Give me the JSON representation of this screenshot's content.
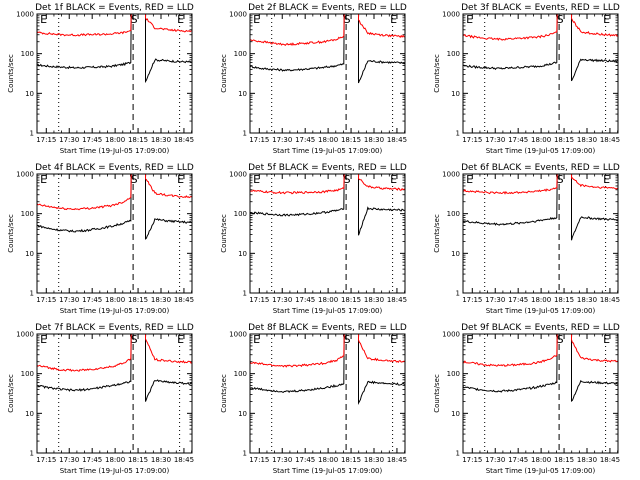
{
  "figure": {
    "colors": {
      "events": "#000000",
      "lld": "#ff0000",
      "axes": "#000000",
      "background": "#ffffff"
    }
  },
  "chart_data": [
    {
      "type": "line",
      "title": "Det 1f BLACK = Events, RED = LLD",
      "xlabel": "Start Time (19-Jul-05 17:09:00)",
      "ylabel": "Counts/sec",
      "xlim": [
        0,
        100
      ],
      "ylim": [
        1,
        1000
      ],
      "yscale": "log",
      "xticks": [
        "17:15",
        "17:30",
        "17:45",
        "18:00",
        "18:15",
        "18:30",
        "18:45"
      ],
      "yticks": [
        "1",
        "10",
        "100",
        "1000"
      ],
      "markers": [
        {
          "label": "E",
          "x": 2
        },
        {
          "label": "S",
          "x": 62
        },
        {
          "label": "E",
          "x": 92
        }
      ],
      "series": [
        {
          "name": "Events",
          "color": "#000000",
          "x": [
            0,
            8,
            16,
            24,
            32,
            40,
            48,
            56,
            60.5,
            61,
            69.5,
            70,
            76,
            84,
            92,
            100
          ],
          "values": [
            52,
            48,
            46,
            44,
            45,
            46,
            48,
            54,
            60,
            1000,
            1000,
            20,
            70,
            66,
            63,
            62
          ]
        },
        {
          "name": "LLD",
          "color": "#ff0000",
          "x": [
            0,
            8,
            16,
            24,
            32,
            40,
            48,
            56,
            60.5,
            61,
            69.5,
            70,
            76,
            84,
            92,
            100
          ],
          "values": [
            340,
            320,
            300,
            295,
            300,
            305,
            315,
            340,
            380,
            1000,
            1000,
            800,
            450,
            400,
            380,
            370
          ]
        }
      ]
    },
    {
      "type": "line",
      "title": "Det 2f BLACK = Events, RED = LLD",
      "xlabel": "Start Time (19-Jul-05 17:09:00)",
      "ylabel": "Counts/sec",
      "xlim": [
        0,
        100
      ],
      "ylim": [
        1,
        1000
      ],
      "yscale": "log",
      "xticks": [
        "17:15",
        "17:30",
        "17:45",
        "18:00",
        "18:15",
        "18:30",
        "18:45"
      ],
      "yticks": [
        "1",
        "10",
        "100",
        "1000"
      ],
      "markers": [
        {
          "label": "E",
          "x": 2
        },
        {
          "label": "S",
          "x": 62
        },
        {
          "label": "E",
          "x": 92
        }
      ],
      "series": [
        {
          "name": "Events",
          "color": "#000000",
          "x": [
            0,
            8,
            16,
            24,
            32,
            40,
            48,
            56,
            60.5,
            61,
            69.5,
            70,
            76,
            84,
            92,
            100
          ],
          "values": [
            48,
            42,
            40,
            38,
            40,
            42,
            45,
            50,
            55,
            1000,
            1000,
            18,
            66,
            62,
            60,
            58
          ]
        },
        {
          "name": "LLD",
          "color": "#ff0000",
          "x": [
            0,
            8,
            16,
            24,
            32,
            40,
            48,
            56,
            60.5,
            61,
            69.5,
            70,
            76,
            84,
            92,
            100
          ],
          "values": [
            220,
            200,
            180,
            170,
            180,
            190,
            200,
            230,
            280,
            1000,
            1000,
            700,
            330,
            300,
            280,
            270
          ]
        }
      ]
    },
    {
      "type": "line",
      "title": "Det 3f BLACK = Events, RED = LLD",
      "xlabel": "Start Time (19-Jul-05 17:09:00)",
      "ylabel": "Counts/sec",
      "xlim": [
        0,
        100
      ],
      "ylim": [
        1,
        1000
      ],
      "yscale": "log",
      "xticks": [
        "17:15",
        "17:30",
        "17:45",
        "18:00",
        "18:15",
        "18:30",
        "18:45"
      ],
      "yticks": [
        "1",
        "10",
        "100",
        "1000"
      ],
      "markers": [
        {
          "label": "E",
          "x": 2
        },
        {
          "label": "S",
          "x": 62
        },
        {
          "label": "E",
          "x": 92
        }
      ],
      "series": [
        {
          "name": "Events",
          "color": "#000000",
          "x": [
            0,
            8,
            16,
            24,
            32,
            40,
            48,
            56,
            60.5,
            61,
            69.5,
            70,
            76,
            84,
            92,
            100
          ],
          "values": [
            50,
            46,
            44,
            42,
            44,
            46,
            48,
            54,
            60,
            1000,
            1000,
            20,
            72,
            68,
            66,
            64
          ]
        },
        {
          "name": "LLD",
          "color": "#ff0000",
          "x": [
            0,
            8,
            16,
            24,
            32,
            40,
            48,
            56,
            60.5,
            61,
            69.5,
            70,
            76,
            84,
            92,
            100
          ],
          "values": [
            290,
            260,
            240,
            230,
            240,
            250,
            260,
            300,
            350,
            1000,
            1000,
            750,
            360,
            320,
            300,
            290
          ]
        }
      ]
    },
    {
      "type": "line",
      "title": "Det 4f BLACK = Events, RED = LLD",
      "xlabel": "Start Time (19-Jul-05 17:09:00)",
      "ylabel": "Counts/sec",
      "xlim": [
        0,
        100
      ],
      "ylim": [
        1,
        1000
      ],
      "yscale": "log",
      "xticks": [
        "17:15",
        "17:30",
        "17:45",
        "18:00",
        "18:15",
        "18:30",
        "18:45"
      ],
      "yticks": [
        "1",
        "10",
        "100",
        "1000"
      ],
      "markers": [
        {
          "label": "E",
          "x": 2
        },
        {
          "label": "S",
          "x": 62
        },
        {
          "label": "E",
          "x": 92
        }
      ],
      "series": [
        {
          "name": "Events",
          "color": "#000000",
          "x": [
            0,
            8,
            16,
            24,
            32,
            40,
            48,
            56,
            60.5,
            61,
            69.5,
            70,
            76,
            84,
            92,
            100
          ],
          "values": [
            50,
            42,
            38,
            36,
            38,
            42,
            48,
            58,
            66,
            1000,
            1000,
            22,
            72,
            66,
            62,
            60
          ]
        },
        {
          "name": "LLD",
          "color": "#ff0000",
          "x": [
            0,
            8,
            16,
            24,
            32,
            40,
            48,
            56,
            60.5,
            61,
            69.5,
            70,
            76,
            84,
            92,
            100
          ],
          "values": [
            170,
            150,
            135,
            130,
            135,
            145,
            160,
            200,
            260,
            1000,
            1000,
            800,
            330,
            290,
            270,
            260
          ]
        }
      ]
    },
    {
      "type": "line",
      "title": "Det 5f BLACK = Events, RED = LLD",
      "xlabel": "Start Time (19-Jul-05 17:09:00)",
      "ylabel": "Counts/sec",
      "xlim": [
        0,
        100
      ],
      "ylim": [
        1,
        1000
      ],
      "yscale": "log",
      "xticks": [
        "17:15",
        "17:30",
        "17:45",
        "18:00",
        "18:15",
        "18:30",
        "18:45"
      ],
      "yticks": [
        "1",
        "10",
        "100",
        "1000"
      ],
      "markers": [
        {
          "label": "E",
          "x": 2
        },
        {
          "label": "S",
          "x": 62
        },
        {
          "label": "E",
          "x": 92
        }
      ],
      "series": [
        {
          "name": "Events",
          "color": "#000000",
          "x": [
            0,
            8,
            16,
            24,
            32,
            40,
            48,
            56,
            60.5,
            61,
            69.5,
            70,
            76,
            84,
            92,
            100
          ],
          "values": [
            105,
            100,
            95,
            92,
            95,
            100,
            108,
            120,
            130,
            1000,
            1000,
            30,
            135,
            128,
            125,
            122
          ]
        },
        {
          "name": "LLD",
          "color": "#ff0000",
          "x": [
            0,
            8,
            16,
            24,
            32,
            40,
            48,
            56,
            60.5,
            61,
            69.5,
            70,
            76,
            84,
            92,
            100
          ],
          "values": [
            380,
            360,
            340,
            335,
            340,
            350,
            360,
            390,
            430,
            1000,
            1000,
            800,
            480,
            440,
            420,
            410
          ]
        }
      ]
    },
    {
      "type": "line",
      "title": "Det 6f BLACK = Events, RED = LLD",
      "xlabel": "Start Time (19-Jul-05 17:09:00)",
      "ylabel": "Counts/sec",
      "xlim": [
        0,
        100
      ],
      "ylim": [
        1,
        1000
      ],
      "yscale": "log",
      "xticks": [
        "17:15",
        "17:30",
        "17:45",
        "18:00",
        "18:15",
        "18:30",
        "18:45"
      ],
      "yticks": [
        "1",
        "10",
        "100",
        "1000"
      ],
      "markers": [
        {
          "label": "E",
          "x": 2
        },
        {
          "label": "S",
          "x": 62
        },
        {
          "label": "E",
          "x": 92
        }
      ],
      "series": [
        {
          "name": "Events",
          "color": "#000000",
          "x": [
            0,
            8,
            16,
            24,
            32,
            40,
            48,
            56,
            60.5,
            61,
            69.5,
            70,
            76,
            84,
            92,
            100
          ],
          "values": [
            65,
            60,
            56,
            54,
            56,
            60,
            66,
            74,
            80,
            1000,
            1000,
            22,
            82,
            76,
            72,
            70
          ]
        },
        {
          "name": "LLD",
          "color": "#ff0000",
          "x": [
            0,
            8,
            16,
            24,
            32,
            40,
            48,
            56,
            60.5,
            61,
            69.5,
            70,
            76,
            84,
            92,
            100
          ],
          "values": [
            380,
            360,
            340,
            335,
            340,
            350,
            365,
            400,
            450,
            1000,
            1000,
            800,
            520,
            470,
            450,
            440
          ]
        }
      ]
    },
    {
      "type": "line",
      "title": "Det 7f BLACK = Events, RED = LLD",
      "xlabel": "Start Time (19-Jul-05 17:09:00)",
      "ylabel": "Counts/sec",
      "xlim": [
        0,
        100
      ],
      "ylim": [
        1,
        1000
      ],
      "yscale": "log",
      "xticks": [
        "17:15",
        "17:30",
        "17:45",
        "18:00",
        "18:15",
        "18:30",
        "18:45"
      ],
      "yticks": [
        "1",
        "10",
        "100",
        "1000"
      ],
      "markers": [
        {
          "label": "E",
          "x": 2
        },
        {
          "label": "S",
          "x": 62
        },
        {
          "label": "E",
          "x": 92
        }
      ],
      "series": [
        {
          "name": "Events",
          "color": "#000000",
          "x": [
            0,
            8,
            16,
            24,
            32,
            40,
            48,
            56,
            60.5,
            61,
            69.5,
            70,
            76,
            84,
            92,
            100
          ],
          "values": [
            50,
            44,
            40,
            38,
            40,
            44,
            50,
            58,
            64,
            1000,
            1000,
            20,
            68,
            62,
            58,
            56
          ]
        },
        {
          "name": "LLD",
          "color": "#ff0000",
          "x": [
            0,
            8,
            16,
            24,
            32,
            40,
            48,
            56,
            60.5,
            61,
            69.5,
            70,
            76,
            84,
            92,
            100
          ],
          "values": [
            160,
            140,
            125,
            120,
            125,
            135,
            150,
            185,
            240,
            1000,
            1000,
            750,
            230,
            210,
            200,
            195
          ]
        }
      ]
    },
    {
      "type": "line",
      "title": "Det 8f BLACK = Events, RED = LLD",
      "xlabel": "Start Time (19-Jul-05 17:09:00)",
      "ylabel": "Counts/sec",
      "xlim": [
        0,
        100
      ],
      "ylim": [
        1,
        1000
      ],
      "yscale": "log",
      "xticks": [
        "17:15",
        "17:30",
        "17:45",
        "18:00",
        "18:15",
        "18:30",
        "18:45"
      ],
      "yticks": [
        "1",
        "10",
        "100",
        "1000"
      ],
      "markers": [
        {
          "label": "E",
          "x": 2
        },
        {
          "label": "S",
          "x": 62
        },
        {
          "label": "E",
          "x": 92
        }
      ],
      "series": [
        {
          "name": "Events",
          "color": "#000000",
          "x": [
            0,
            8,
            16,
            24,
            32,
            40,
            48,
            56,
            60.5,
            61,
            69.5,
            70,
            76,
            84,
            92,
            100
          ],
          "values": [
            44,
            40,
            37,
            35,
            37,
            40,
            44,
            50,
            56,
            1000,
            1000,
            18,
            62,
            58,
            55,
            54
          ]
        },
        {
          "name": "LLD",
          "color": "#ff0000",
          "x": [
            0,
            8,
            16,
            24,
            32,
            40,
            48,
            56,
            60.5,
            61,
            69.5,
            70,
            76,
            84,
            92,
            100
          ],
          "values": [
            190,
            175,
            160,
            155,
            160,
            170,
            185,
            220,
            280,
            1000,
            1000,
            700,
            240,
            220,
            205,
            200
          ]
        }
      ]
    },
    {
      "type": "line",
      "title": "Det 9f BLACK = Events, RED = LLD",
      "xlabel": "Start Time (19-Jul-05 17:09:00)",
      "ylabel": "Counts/sec",
      "xlim": [
        0,
        100
      ],
      "ylim": [
        1,
        1000
      ],
      "yscale": "log",
      "xticks": [
        "17:15",
        "17:30",
        "17:45",
        "18:00",
        "18:15",
        "18:30",
        "18:45"
      ],
      "yticks": [
        "1",
        "10",
        "100",
        "1000"
      ],
      "markers": [
        {
          "label": "E",
          "x": 2
        },
        {
          "label": "S",
          "x": 62
        },
        {
          "label": "E",
          "x": 92
        }
      ],
      "series": [
        {
          "name": "Events",
          "color": "#000000",
          "x": [
            0,
            8,
            16,
            24,
            32,
            40,
            48,
            56,
            60.5,
            61,
            69.5,
            70,
            76,
            84,
            92,
            100
          ],
          "values": [
            46,
            41,
            38,
            36,
            38,
            41,
            46,
            54,
            60,
            1000,
            1000,
            20,
            64,
            60,
            58,
            56
          ]
        },
        {
          "name": "LLD",
          "color": "#ff0000",
          "x": [
            0,
            8,
            16,
            24,
            32,
            40,
            48,
            56,
            60.5,
            61,
            69.5,
            70,
            76,
            84,
            92,
            100
          ],
          "values": [
            200,
            180,
            165,
            160,
            165,
            175,
            190,
            230,
            290,
            1000,
            1000,
            700,
            250,
            225,
            210,
            205
          ]
        }
      ]
    }
  ]
}
